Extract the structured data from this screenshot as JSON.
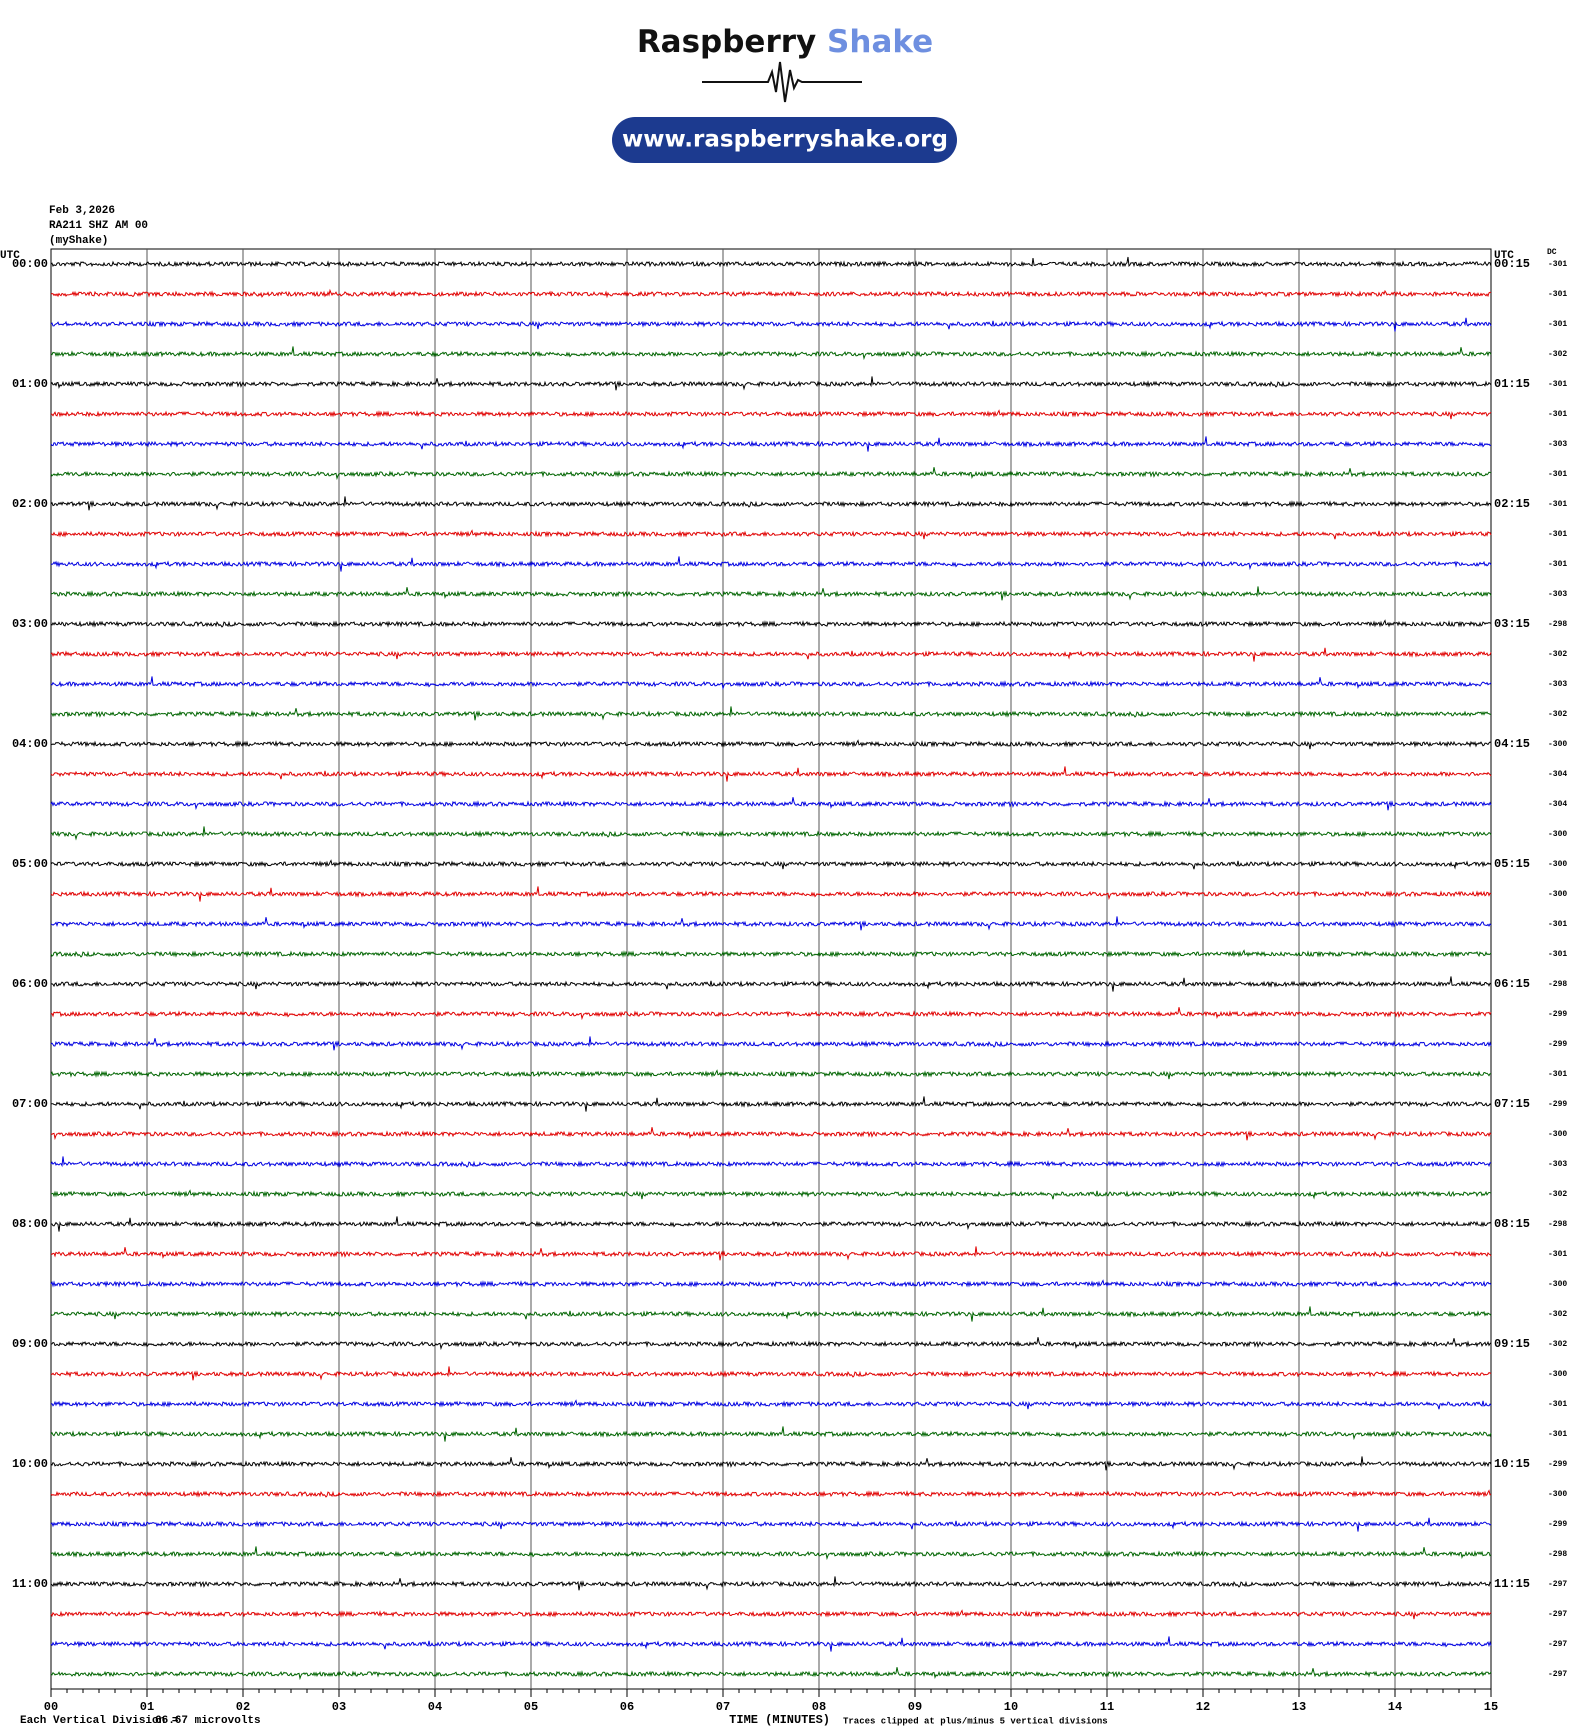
{
  "header": {
    "brand_first": "Raspberry",
    "brand_second": "Shake",
    "url": "www.raspberryshake.org"
  },
  "station": {
    "date": "Feb 3,2026",
    "channel": "RA211 SHZ AM 00",
    "network": "(myShake)"
  },
  "left_axis_title": "UTC",
  "right_axis_title": "UTC",
  "dc_title": "DC",
  "trace_colors": [
    "#000000",
    "#e00000",
    "#0000e0",
    "#006400"
  ],
  "left_labels": [
    "00:00",
    "01:00",
    "02:00",
    "03:00",
    "04:00",
    "05:00",
    "06:00",
    "07:00",
    "08:00",
    "09:00",
    "10:00",
    "11:00"
  ],
  "right_labels": [
    "00:15",
    "01:15",
    "02:15",
    "03:15",
    "04:15",
    "05:15",
    "06:15",
    "07:15",
    "08:15",
    "09:15",
    "10:15",
    "11:15"
  ],
  "dc_values": [
    -301,
    -301,
    -301,
    -302,
    -301,
    -301,
    -303,
    -301,
    -301,
    -301,
    -301,
    -303,
    -298,
    -302,
    -303,
    -302,
    -300,
    -304,
    -304,
    -300,
    -300,
    -300,
    -301,
    -301,
    -298,
    -299,
    -299,
    -301,
    -299,
    -300,
    -303,
    -302,
    -298,
    -301,
    -300,
    -302,
    -302,
    -300,
    -301,
    -301,
    -299,
    -300,
    -299,
    -298,
    -297,
    -297,
    -297,
    -297
  ],
  "x_tick_labels": [
    "00",
    "01",
    "02",
    "03",
    "04",
    "05",
    "06",
    "07",
    "08",
    "09",
    "10",
    "11",
    "12",
    "13",
    "14",
    "15"
  ],
  "footer": {
    "division_label": "Each Vertical Division =",
    "division_value": "66.67 microvolts",
    "x_axis_title": "TIME (MINUTES)",
    "clip_note": "Traces clipped at plus/minus 5 vertical divisions"
  }
}
